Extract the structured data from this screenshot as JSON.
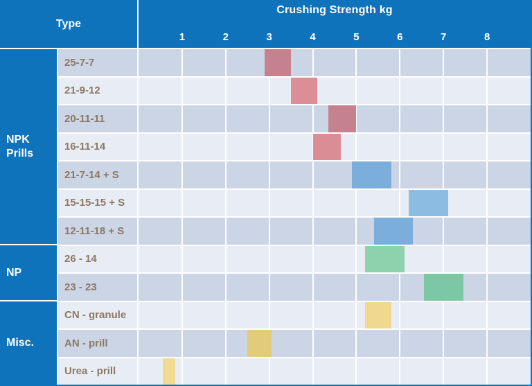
{
  "header": {
    "type_label": "Type",
    "title": "Crushing Strength kg"
  },
  "colors": {
    "header_blue": "#0e73ba",
    "row_dark": "#cbd5e6",
    "row_light": "#e8ecf4",
    "row_label_text": "#8a7964",
    "gridline_white": "#ffffff"
  },
  "chart_data": {
    "type": "bar",
    "subtype": "horizontal-range",
    "title": "Crushing Strength kg",
    "xlabel": "Crushing Strength kg",
    "ylabel": "Type",
    "xlim": [
      0,
      9
    ],
    "x_ticks": [
      1,
      2,
      3,
      4,
      5,
      6,
      7,
      8
    ],
    "grid": true,
    "groups": [
      {
        "name": "NPK Prills",
        "rows": 7
      },
      {
        "name": "NP",
        "rows": 2
      },
      {
        "name": "Misc.",
        "rows": 3
      }
    ],
    "rows": [
      {
        "group": "NPK Prills",
        "label": "25-7-7",
        "range_kg": [
          2.9,
          3.5
        ],
        "color": "#c6818e"
      },
      {
        "group": "NPK Prills",
        "label": "21-9-12",
        "range_kg": [
          3.5,
          4.1
        ],
        "color": "#dc8e96"
      },
      {
        "group": "NPK Prills",
        "label": "20-11-11",
        "range_kg": [
          4.35,
          5.0
        ],
        "color": "#c6818e"
      },
      {
        "group": "NPK Prills",
        "label": "16-11-14",
        "range_kg": [
          4.0,
          4.65
        ],
        "color": "#da8d94"
      },
      {
        "group": "NPK Prills",
        "label": "21-7-14 + S",
        "range_kg": [
          4.9,
          5.8
        ],
        "color": "#7baedb"
      },
      {
        "group": "NPK Prills",
        "label": "15-15-15 + S",
        "range_kg": [
          6.2,
          7.1
        ],
        "color": "#8cbce2"
      },
      {
        "group": "NPK Prills",
        "label": "12-11-18 + S",
        "range_kg": [
          5.4,
          6.3
        ],
        "color": "#7baedb"
      },
      {
        "group": "NP",
        "label": "26 - 14",
        "range_kg": [
          5.2,
          6.1
        ],
        "color": "#8dd2ac"
      },
      {
        "group": "NP",
        "label": "23 - 23",
        "range_kg": [
          6.55,
          7.45
        ],
        "color": "#7dc8a4"
      },
      {
        "group": "Misc.",
        "label": "CN - granule",
        "range_kg": [
          5.2,
          5.8
        ],
        "color": "#f0d98e"
      },
      {
        "group": "Misc.",
        "label": "AN - prill",
        "range_kg": [
          2.5,
          3.05
        ],
        "color": "#e2cc7b"
      },
      {
        "group": "Misc.",
        "label": "Urea - prill",
        "range_kg": [
          0.55,
          0.85
        ],
        "color": "#f0dc90"
      }
    ]
  }
}
